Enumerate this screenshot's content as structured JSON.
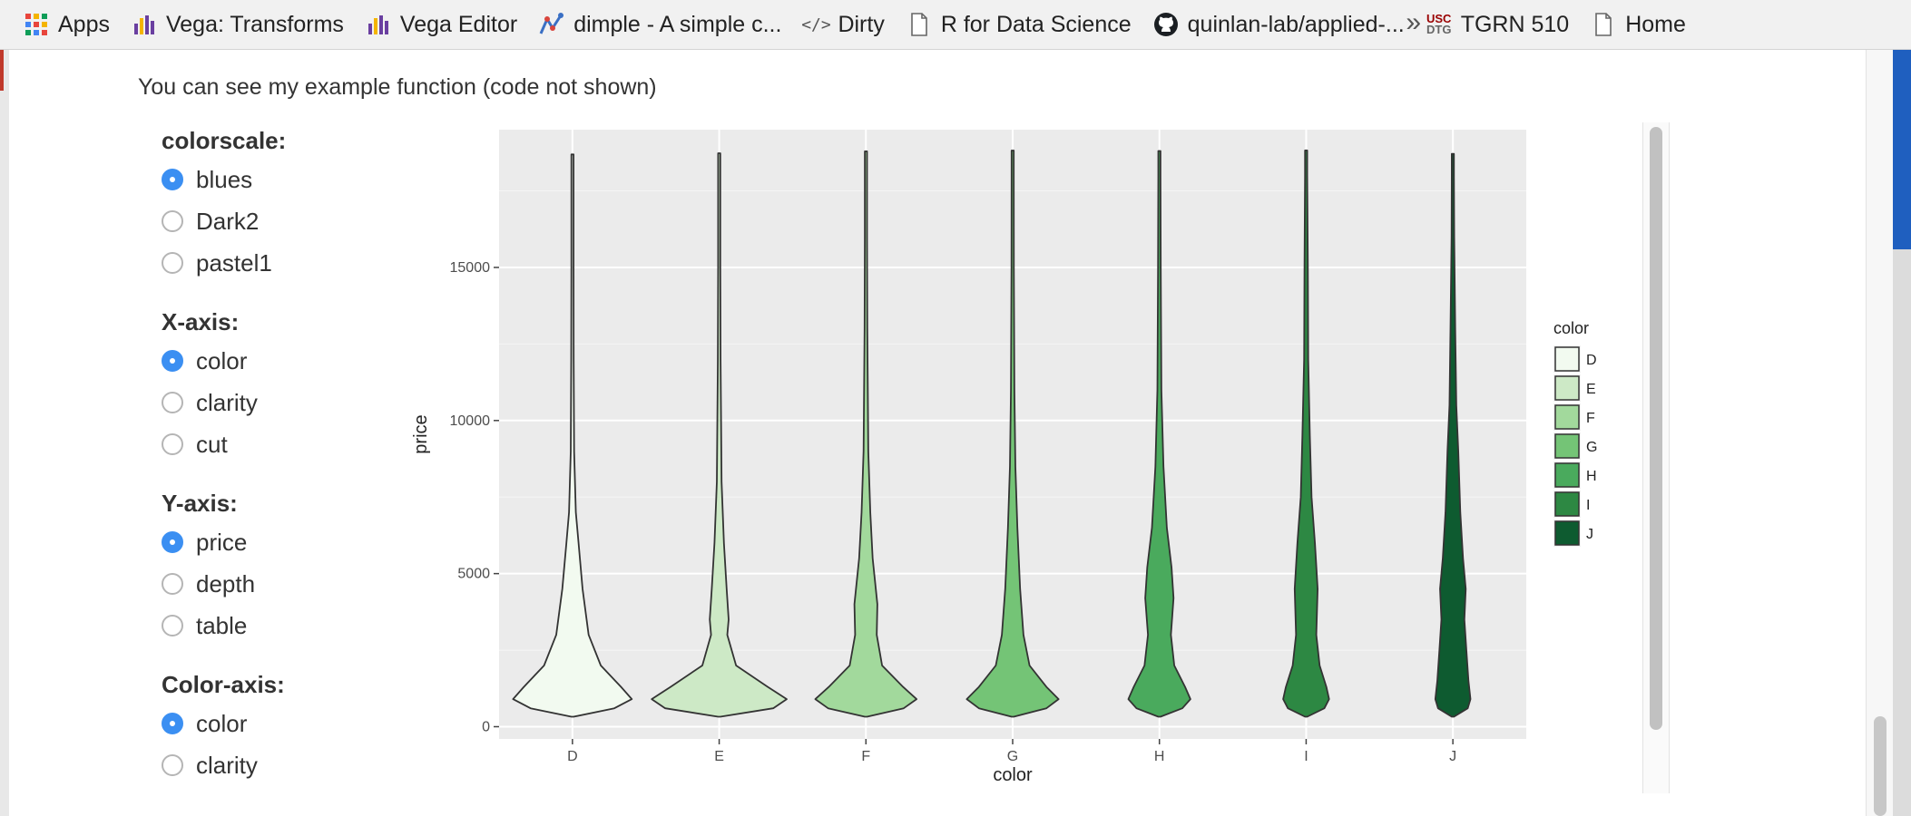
{
  "bookmarks": [
    {
      "label": "Apps",
      "icon": "apps-grid-icon"
    },
    {
      "label": "Vega: Transforms",
      "icon": "vega-icon"
    },
    {
      "label": "Vega Editor",
      "icon": "vega-icon"
    },
    {
      "label": "dimple - A simple c...",
      "icon": "dimple-icon"
    },
    {
      "label": "Dirty",
      "icon": "code-icon"
    },
    {
      "label": "R for Data Science",
      "icon": "page-icon"
    },
    {
      "label": "quinlan-lab/applied-...",
      "icon": "github-icon"
    },
    {
      "label": "TGRN 510",
      "icon": "usc-icon"
    },
    {
      "label": "Home",
      "icon": "page-icon"
    }
  ],
  "bookmarks_more": "»",
  "intro": "You can see my example function (code not shown)",
  "controls": [
    {
      "label": "colorscale:",
      "options": [
        "blues",
        "Dark2",
        "pastel1"
      ],
      "selected": 0
    },
    {
      "label": "X-axis:",
      "options": [
        "color",
        "clarity",
        "cut"
      ],
      "selected": 0
    },
    {
      "label": "Y-axis:",
      "options": [
        "price",
        "depth",
        "table"
      ],
      "selected": 0
    },
    {
      "label": "Color-axis:",
      "options": [
        "color",
        "clarity"
      ],
      "selected": 0
    }
  ],
  "chart_data": {
    "type": "violin",
    "categories": [
      "D",
      "E",
      "F",
      "G",
      "H",
      "I",
      "J"
    ],
    "xlabel": "color",
    "ylabel": "price",
    "yticks": [
      0,
      5000,
      10000,
      15000
    ],
    "ylim": [
      -400,
      19500
    ],
    "legend": {
      "title": "color",
      "placement": "right",
      "entries": [
        "D",
        "E",
        "F",
        "G",
        "H",
        "I",
        "J"
      ]
    },
    "fill_colors": [
      "#f2faf0",
      "#cde9c6",
      "#a2d99c",
      "#74c476",
      "#4aaa5d",
      "#2d8843",
      "#0e5b30"
    ],
    "panel_background": "#ebebeb",
    "price_min": 326,
    "price_max": [
      18693,
      18731,
      18791,
      18818,
      18803,
      18823,
      18710
    ],
    "density_profiles": [
      [
        [
          326,
          0.0
        ],
        [
          600,
          0.62
        ],
        [
          900,
          0.88
        ],
        [
          1300,
          0.72
        ],
        [
          2000,
          0.42
        ],
        [
          3000,
          0.24
        ],
        [
          4500,
          0.15
        ],
        [
          6000,
          0.09
        ],
        [
          7000,
          0.05
        ],
        [
          9000,
          0.025
        ],
        [
          12000,
          0.018
        ],
        [
          15000,
          0.012
        ],
        [
          18000,
          0.006
        ]
      ],
      [
        [
          326,
          0.0
        ],
        [
          600,
          0.8
        ],
        [
          900,
          1.0
        ],
        [
          1300,
          0.72
        ],
        [
          2000,
          0.25
        ],
        [
          3000,
          0.12
        ],
        [
          3500,
          0.14
        ],
        [
          4500,
          0.11
        ],
        [
          6000,
          0.07
        ],
        [
          8000,
          0.035
        ],
        [
          12000,
          0.02
        ],
        [
          15000,
          0.014
        ],
        [
          18000,
          0.008
        ]
      ],
      [
        [
          326,
          0.0
        ],
        [
          600,
          0.56
        ],
        [
          900,
          0.75
        ],
        [
          1300,
          0.55
        ],
        [
          2000,
          0.24
        ],
        [
          3000,
          0.16
        ],
        [
          4000,
          0.17
        ],
        [
          5500,
          0.1
        ],
        [
          7000,
          0.065
        ],
        [
          9000,
          0.035
        ],
        [
          13000,
          0.02
        ],
        [
          16000,
          0.014
        ],
        [
          18000,
          0.008
        ]
      ],
      [
        [
          326,
          0.0
        ],
        [
          600,
          0.5
        ],
        [
          900,
          0.68
        ],
        [
          1300,
          0.5
        ],
        [
          2000,
          0.25
        ],
        [
          3000,
          0.16
        ],
        [
          4500,
          0.11
        ],
        [
          6500,
          0.07
        ],
        [
          8500,
          0.04
        ],
        [
          11000,
          0.025
        ],
        [
          15000,
          0.018
        ],
        [
          18000,
          0.01
        ]
      ],
      [
        [
          326,
          0.0
        ],
        [
          600,
          0.34
        ],
        [
          900,
          0.46
        ],
        [
          1300,
          0.38
        ],
        [
          2000,
          0.22
        ],
        [
          3000,
          0.17
        ],
        [
          4200,
          0.21
        ],
        [
          5200,
          0.18
        ],
        [
          6500,
          0.11
        ],
        [
          8500,
          0.06
        ],
        [
          11000,
          0.03
        ],
        [
          15000,
          0.02
        ],
        [
          18000,
          0.012
        ]
      ],
      [
        [
          326,
          0.0
        ],
        [
          600,
          0.27
        ],
        [
          900,
          0.34
        ],
        [
          1300,
          0.3
        ],
        [
          2000,
          0.2
        ],
        [
          3000,
          0.15
        ],
        [
          4500,
          0.17
        ],
        [
          6000,
          0.13
        ],
        [
          7500,
          0.08
        ],
        [
          9500,
          0.055
        ],
        [
          12000,
          0.03
        ],
        [
          15000,
          0.025
        ],
        [
          18000,
          0.015
        ]
      ],
      [
        [
          326,
          0.0
        ],
        [
          600,
          0.22
        ],
        [
          900,
          0.26
        ],
        [
          1500,
          0.23
        ],
        [
          2500,
          0.2
        ],
        [
          3500,
          0.17
        ],
        [
          4500,
          0.19
        ],
        [
          5500,
          0.15
        ],
        [
          7000,
          0.11
        ],
        [
          9000,
          0.08
        ],
        [
          10500,
          0.05
        ],
        [
          13000,
          0.035
        ],
        [
          16000,
          0.02
        ],
        [
          18000,
          0.01
        ]
      ]
    ]
  }
}
